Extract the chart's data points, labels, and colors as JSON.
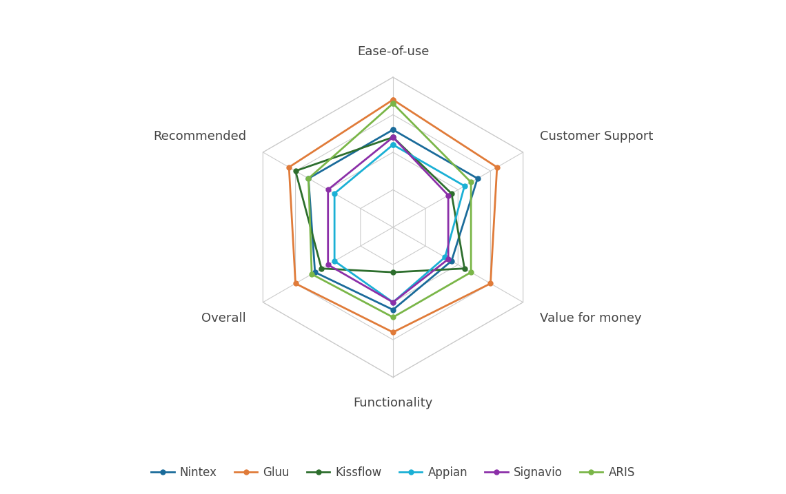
{
  "categories": [
    "Ease-of-use",
    "Customer Support",
    "Value for money",
    "Functionality",
    "Overall",
    "Recommended"
  ],
  "series": [
    {
      "name": "Nintex",
      "color": "#1a6b9a",
      "values": [
        4.3,
        4.3,
        3.9,
        4.1,
        4.2,
        4.3
      ]
    },
    {
      "name": "Gluu",
      "color": "#e07b39",
      "values": [
        4.7,
        4.6,
        4.5,
        4.4,
        4.5,
        4.6
      ]
    },
    {
      "name": "Kissflow",
      "color": "#2d6e2d",
      "values": [
        4.2,
        3.9,
        4.1,
        3.6,
        4.1,
        4.5
      ]
    },
    {
      "name": "Appian",
      "color": "#1ab0d5",
      "values": [
        4.1,
        4.1,
        3.8,
        4.0,
        3.9,
        3.9
      ]
    },
    {
      "name": "Signavio",
      "color": "#8b2fa8",
      "values": [
        4.2,
        3.85,
        3.85,
        4.0,
        4.0,
        4.0
      ]
    },
    {
      "name": "ARIS",
      "color": "#7ab648",
      "values": [
        4.65,
        4.2,
        4.2,
        4.2,
        4.25,
        4.3
      ]
    }
  ],
  "rmin": 3.0,
  "rmax": 5.0,
  "grid_levels": [
    3.5,
    4.0,
    4.5,
    5.0
  ],
  "grid_color": "#cccccc",
  "background_color": "#ffffff",
  "label_fontsize": 13,
  "legend_fontsize": 12,
  "marker_size": 5,
  "line_width": 2.0,
  "spoke_color": "#cccccc"
}
